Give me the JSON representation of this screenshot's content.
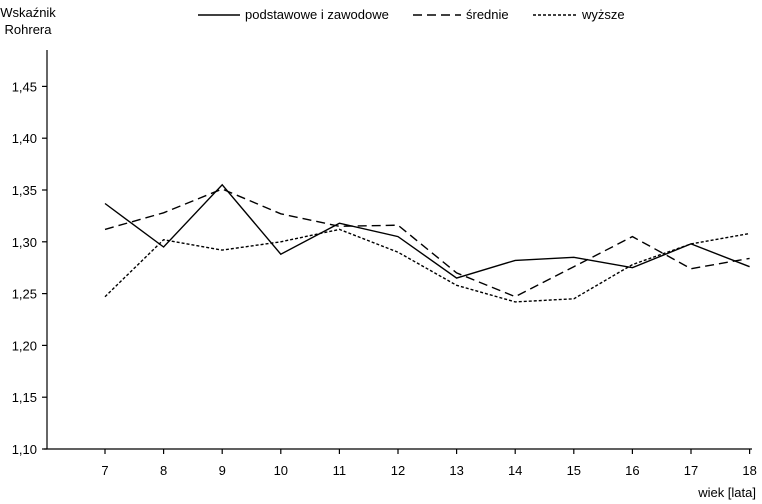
{
  "chart_data": {
    "type": "line",
    "title": "",
    "ylabel": [
      "Wskaźnik",
      "Rohrera"
    ],
    "xlabel": "wiek [lata]",
    "categories": [
      "7",
      "8",
      "9",
      "10",
      "11",
      "12",
      "13",
      "14",
      "15",
      "16",
      "17",
      "18"
    ],
    "ylim": [
      1.1,
      1.5
    ],
    "yticks": [
      "1,10",
      "1,15",
      "1,20",
      "1,25",
      "1,30",
      "1,35",
      "1,40",
      "1,45"
    ],
    "ytick_values": [
      1.1,
      1.15,
      1.2,
      1.25,
      1.3,
      1.35,
      1.4,
      1.45
    ],
    "legend_position": "top",
    "grid": false,
    "series": [
      {
        "name": "podstawowe i zawodowe",
        "style": "solid",
        "values": [
          1.337,
          1.295,
          1.355,
          1.288,
          1.318,
          1.305,
          1.265,
          1.282,
          1.285,
          1.275,
          1.298,
          1.276
        ]
      },
      {
        "name": "średnie",
        "style": "dashed",
        "values": [
          1.312,
          1.328,
          1.351,
          1.327,
          1.315,
          1.316,
          1.27,
          1.247,
          1.276,
          1.305,
          1.274,
          1.284
        ]
      },
      {
        "name": "wyższe",
        "style": "dotted",
        "values": [
          1.247,
          1.302,
          1.292,
          1.3,
          1.312,
          1.29,
          1.258,
          1.242,
          1.245,
          1.278,
          1.298,
          1.308
        ]
      }
    ]
  }
}
